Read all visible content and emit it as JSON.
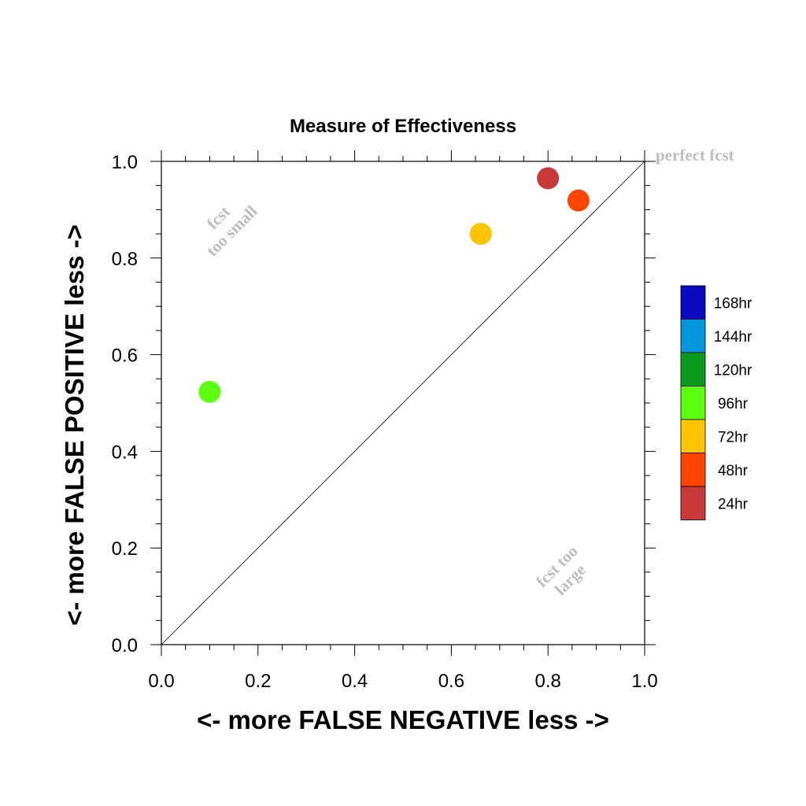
{
  "chart_data": {
    "type": "scatter",
    "title": "Measure of Effectiveness",
    "xlabel": "<- more   FALSE NEGATIVE   less ->",
    "ylabel": "<- more   FALSE POSITIVE   less ->",
    "xlim": [
      0,
      1
    ],
    "ylim": [
      0,
      1
    ],
    "xticks": [
      "0.0",
      "0.2",
      "0.4",
      "0.6",
      "0.8",
      "1.0"
    ],
    "yticks": [
      "0.0",
      "0.2",
      "0.4",
      "0.6",
      "0.8",
      "1.0"
    ],
    "grid": false,
    "reference_line": "diagonal y = x",
    "annotations": {
      "perfect": "perfect fcst",
      "small_line1": "fcst",
      "small_line2": "too small",
      "large_line1": "fcst too",
      "large_line2": "large"
    },
    "legend": {
      "placement": "right",
      "entries": [
        {
          "label": "168hr",
          "color": "#0a0ac2"
        },
        {
          "label": "144hr",
          "color": "#0497dd"
        },
        {
          "label": "120hr",
          "color": "#0a9a1c"
        },
        {
          "label": "96hr",
          "color": "#5bff0f"
        },
        {
          "label": "72hr",
          "color": "#ffc400"
        },
        {
          "label": "48hr",
          "color": "#ff4500"
        },
        {
          "label": "24hr",
          "color": "#c83939"
        }
      ]
    },
    "points": [
      {
        "series": "96hr",
        "x": 0.1,
        "y": 0.523,
        "color": "#5bff0f"
      },
      {
        "series": "72hr",
        "x": 0.661,
        "y": 0.85,
        "color": "#ffc400"
      },
      {
        "series": "48hr",
        "x": 0.863,
        "y": 0.919,
        "color": "#ff4500"
      },
      {
        "series": "24hr",
        "x": 0.8,
        "y": 0.965,
        "color": "#c83939"
      }
    ]
  }
}
